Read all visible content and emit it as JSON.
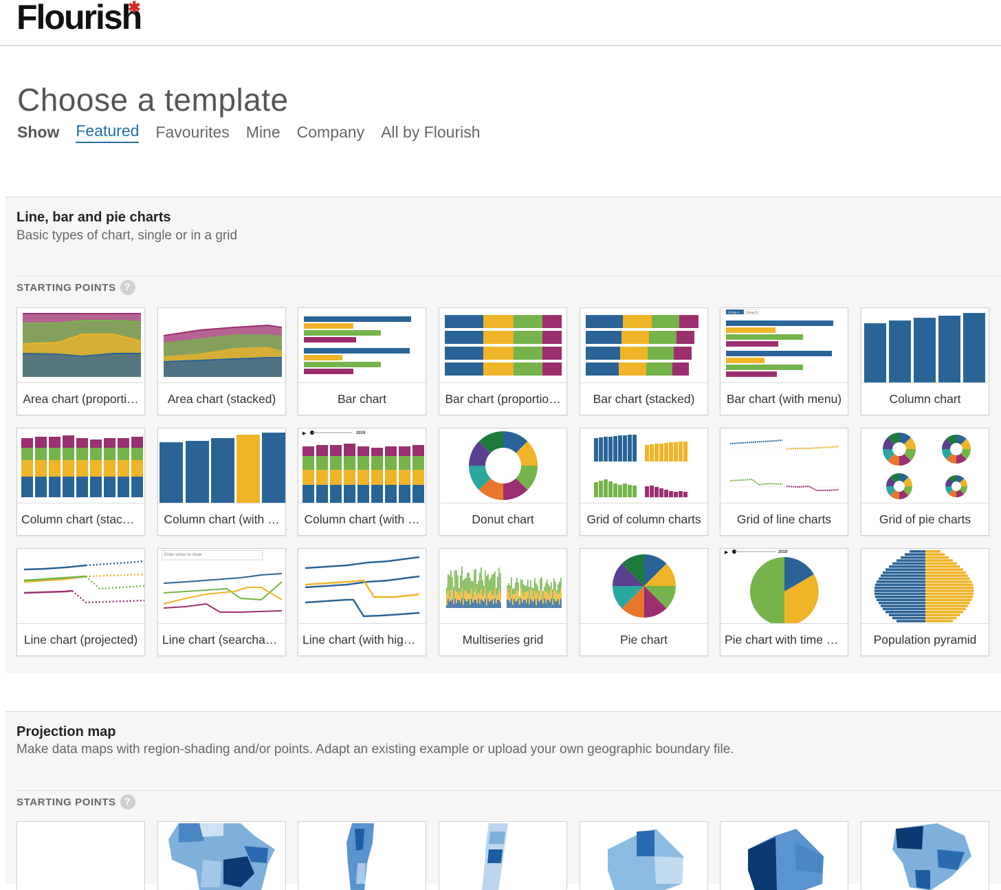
{
  "app": {
    "logo_text": "Flourish",
    "logo_mark": "✱"
  },
  "header": {
    "title": "Choose a template",
    "filter_label": "Show",
    "filters": [
      "Featured",
      "Favourites",
      "Mine",
      "Company",
      "All by Flourish"
    ],
    "active_filter": "Featured"
  },
  "sections": [
    {
      "title": "Line, bar and pie charts",
      "description": "Basic types of chart, single or in a grid",
      "starting_points_label": "STARTING POINTS",
      "help_label": "?",
      "templates": [
        "Area chart (proporti…",
        "Area chart (stacked)",
        "Bar chart",
        "Bar chart (proportio…",
        "Bar chart (stacked)",
        "Bar chart (with menu)",
        "Column chart",
        "Column chart (stack…",
        "Column chart (with …",
        "Column chart (with …",
        "Donut chart",
        "Grid of column charts",
        "Grid of line charts",
        "Grid of pie charts",
        "Line chart (projected)",
        "Line chart (searchable)",
        "Line chart (with high…",
        "Multiseries grid",
        "Pie chart",
        "Pie chart with time s…",
        "Population pyramid"
      ],
      "thumb_text": {
        "search_placeholder": "Enter series to show",
        "year": "2019",
        "group_a": "Group A",
        "group_b": "Group B",
        "play": "▶"
      }
    },
    {
      "title": "Projection map",
      "description": "Make data maps with region-shading and/or points. Adapt an existing example or upload your own geographic boundary file.",
      "starting_points_label": "STARTING POINTS",
      "help_label": "?"
    }
  ],
  "colors": {
    "blue": "#2a6496",
    "yellow": "#f0b428",
    "green": "#74b44a",
    "purple": "#9b2f6f",
    "link": "#1f6fa6"
  }
}
